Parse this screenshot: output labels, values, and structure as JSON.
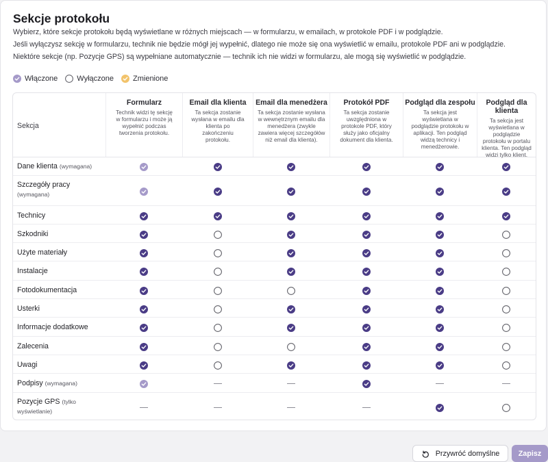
{
  "title": "Sekcje protokołu",
  "description": [
    "Wybierz, które sekcje protokołu będą wyświetlane w różnych miejscach — w formularzu, w emailach, w protokole PDF i w podglądzie.",
    "Jeśli wyłączysz sekcję w formularzu, technik nie będzie mógł jej wypełnić, dlatego nie może się ona wyświetlić w emailu, protokole PDF ani w podglądzie.",
    "Niektóre sekcje (np. Pozycje GPS) są wypełniane automatycznie — technik ich nie widzi w formularzu, ale mogą się wyświetlić w podglądzie."
  ],
  "legend": {
    "on": "Włączone",
    "off": "Wyłączone",
    "changed": "Zmienione"
  },
  "colors": {
    "on": "#4a3c86",
    "locked": "#a59ac9",
    "changed": "#f2c36b",
    "save_bg": "#a59ac9"
  },
  "table": {
    "section_header": "Sekcja",
    "columns": [
      {
        "title": "Formularz",
        "desc": "Technik widzi tę sekcję w formularzu i może ją wypełnić podczas tworzenia protokołu."
      },
      {
        "title": "Email dla klienta",
        "desc": "Ta sekcja zostanie wysłana w emailu dla klienta po zakończeniu protokołu."
      },
      {
        "title": "Email dla menedżera",
        "desc": "Ta sekcja zostanie wysłana w wewnętrznym emailu dla menedżera (zwykle zawiera więcej szczegółów niż email dla klienta)."
      },
      {
        "title": "Protokół PDF",
        "desc": "Ta sekcja zostanie uwzględniona w protokole PDF, który służy jako oficjalny dokument dla klienta."
      },
      {
        "title": "Podgląd dla zespołu",
        "desc": "Ta sekcja jest wyświetlana w podglądzie protokołu w aplikacji. Ten podgląd widzą technicy i menedżerowie."
      },
      {
        "title": "Podgląd dla klienta",
        "desc": "Ta sekcja jest wyświetlana w podglądzie protokołu w portalu klienta. Ten podgląd widzi tylko klient."
      }
    ],
    "rows": [
      {
        "name": "Dane klienta",
        "note": "(wymagana)",
        "cells": [
          "locked",
          "on",
          "on",
          "on",
          "on",
          "on"
        ]
      },
      {
        "name": "Szczegóły pracy",
        "note": "(wymagana)",
        "cells": [
          "locked",
          "on",
          "on",
          "on",
          "on",
          "on"
        ]
      },
      {
        "name": "Technicy",
        "note": "",
        "cells": [
          "on",
          "on",
          "on",
          "on",
          "on",
          "on"
        ]
      },
      {
        "name": "Szkodniki",
        "note": "",
        "cells": [
          "on",
          "off",
          "on",
          "on",
          "on",
          "off"
        ]
      },
      {
        "name": "Użyte materiały",
        "note": "",
        "cells": [
          "on",
          "off",
          "on",
          "on",
          "on",
          "off"
        ]
      },
      {
        "name": "Instalacje",
        "note": "",
        "cells": [
          "on",
          "off",
          "on",
          "on",
          "on",
          "off"
        ]
      },
      {
        "name": "Fotodokumentacja",
        "note": "",
        "cells": [
          "on",
          "off",
          "off",
          "on",
          "on",
          "off"
        ]
      },
      {
        "name": "Usterki",
        "note": "",
        "cells": [
          "on",
          "off",
          "on",
          "on",
          "on",
          "off"
        ]
      },
      {
        "name": "Informacje dodatkowe",
        "note": "",
        "cells": [
          "on",
          "off",
          "on",
          "on",
          "on",
          "off"
        ]
      },
      {
        "name": "Zalecenia",
        "note": "",
        "cells": [
          "on",
          "off",
          "off",
          "on",
          "on",
          "off"
        ]
      },
      {
        "name": "Uwagi",
        "note": "",
        "cells": [
          "on",
          "off",
          "on",
          "on",
          "on",
          "off"
        ]
      },
      {
        "name": "Podpisy",
        "note": "(wymagana)",
        "cells": [
          "locked",
          "na",
          "na",
          "on",
          "na",
          "na"
        ]
      },
      {
        "name": "Pozycje GPS",
        "note": "(tylko wyświetlanie)",
        "cells": [
          "na",
          "na",
          "na",
          "na",
          "on",
          "off"
        ]
      }
    ]
  },
  "buttons": {
    "reset": "Przywróć domyślne",
    "save": "Zapisz"
  }
}
